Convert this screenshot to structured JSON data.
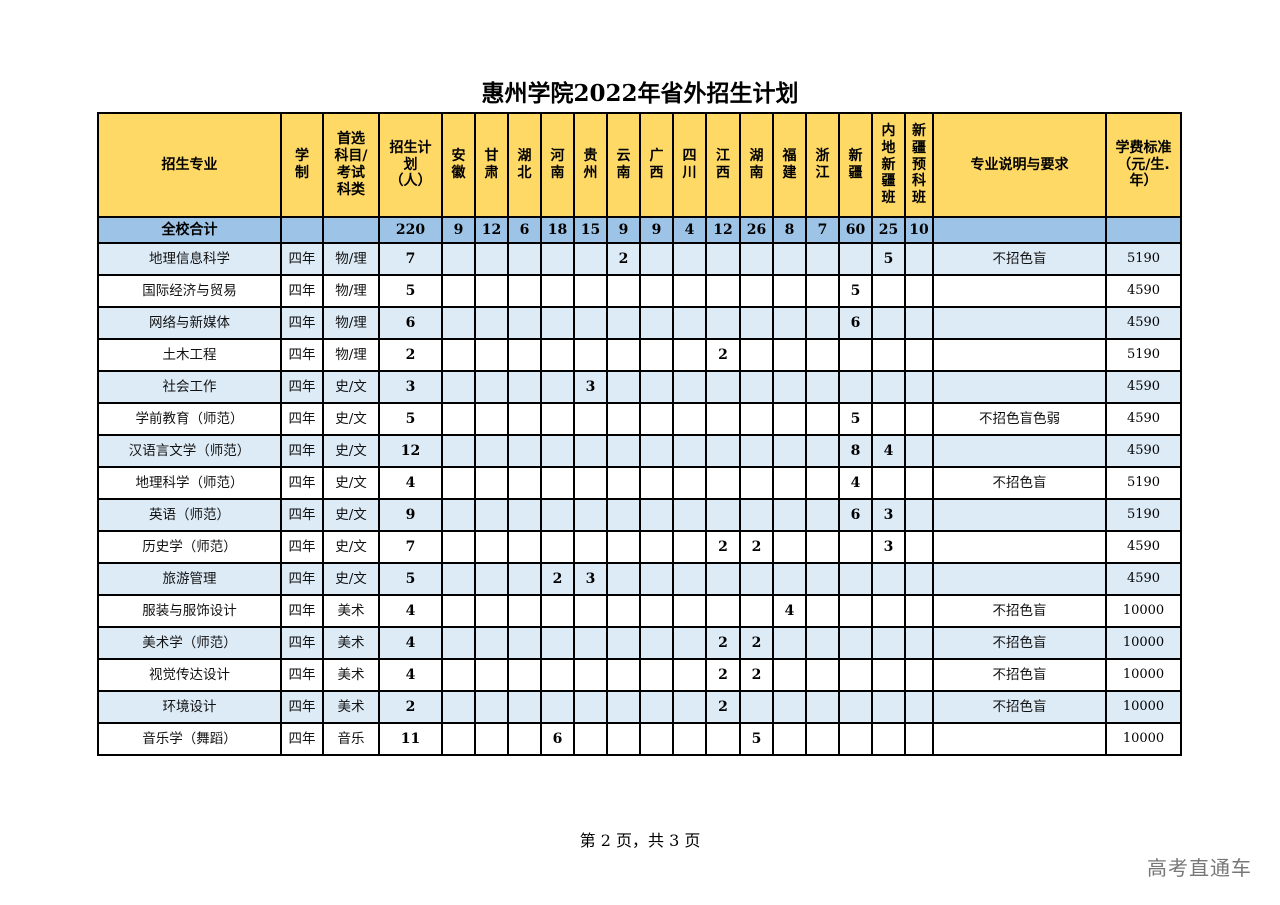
{
  "title": "惠州学院2022年省外招生计划",
  "headers": [
    "招生专业",
    "学\n制",
    "首选\n科目/\n考试\n科类",
    "招生计\n划\n（人）",
    "安\n徽",
    "甘\n肃",
    "湖\n北",
    "河\n南",
    "贵\n州",
    "云\n南",
    "广\n西",
    "四\n川",
    "江\n西",
    "湖\n南",
    "福\n建",
    "浙\n江",
    "新\n疆",
    "内\n地\n新\n疆\n班",
    "新\n疆\n预\n科\n班",
    "专业说明与要求",
    "学费标准\n（元/生.\n年）"
  ],
  "total": {
    "name": "全校合计",
    "plan": "220",
    "provinces": [
      "9",
      "12",
      "6",
      "18",
      "15",
      "9",
      "9",
      "4",
      "12",
      "26",
      "8",
      "7",
      "60",
      "25",
      "10"
    ]
  },
  "rows": [
    {
      "name": "地理信息科学",
      "years": "四年",
      "subject": "物/理",
      "plan": "7",
      "provinces": [
        "",
        "",
        "",
        "",
        "",
        "2",
        "",
        "",
        "",
        "",
        "",
        "",
        "",
        "5",
        ""
      ],
      "note": "不招色盲",
      "fee": "5190"
    },
    {
      "name": "国际经济与贸易",
      "years": "四年",
      "subject": "物/理",
      "plan": "5",
      "provinces": [
        "",
        "",
        "",
        "",
        "",
        "",
        "",
        "",
        "",
        "",
        "",
        "",
        "5",
        "",
        ""
      ],
      "note": "",
      "fee": "4590"
    },
    {
      "name": "网络与新媒体",
      "years": "四年",
      "subject": "物/理",
      "plan": "6",
      "provinces": [
        "",
        "",
        "",
        "",
        "",
        "",
        "",
        "",
        "",
        "",
        "",
        "",
        "6",
        "",
        ""
      ],
      "note": "",
      "fee": "4590"
    },
    {
      "name": "土木工程",
      "years": "四年",
      "subject": "物/理",
      "plan": "2",
      "provinces": [
        "",
        "",
        "",
        "",
        "",
        "",
        "",
        "",
        "2",
        "",
        "",
        "",
        "",
        "",
        ""
      ],
      "note": "",
      "fee": "5190"
    },
    {
      "name": "社会工作",
      "years": "四年",
      "subject": "史/文",
      "plan": "3",
      "provinces": [
        "",
        "",
        "",
        "",
        "3",
        "",
        "",
        "",
        "",
        "",
        "",
        "",
        "",
        "",
        ""
      ],
      "note": "",
      "fee": "4590"
    },
    {
      "name": "学前教育（师范）",
      "years": "四年",
      "subject": "史/文",
      "plan": "5",
      "provinces": [
        "",
        "",
        "",
        "",
        "",
        "",
        "",
        "",
        "",
        "",
        "",
        "",
        "5",
        "",
        ""
      ],
      "note": "不招色盲色弱",
      "fee": "4590"
    },
    {
      "name": "汉语言文学（师范）",
      "years": "四年",
      "subject": "史/文",
      "plan": "12",
      "provinces": [
        "",
        "",
        "",
        "",
        "",
        "",
        "",
        "",
        "",
        "",
        "",
        "",
        "8",
        "4",
        ""
      ],
      "note": "",
      "fee": "4590"
    },
    {
      "name": "地理科学（师范）",
      "years": "四年",
      "subject": "史/文",
      "plan": "4",
      "provinces": [
        "",
        "",
        "",
        "",
        "",
        "",
        "",
        "",
        "",
        "",
        "",
        "",
        "4",
        "",
        ""
      ],
      "note": "不招色盲",
      "fee": "5190"
    },
    {
      "name": "英语（师范）",
      "years": "四年",
      "subject": "史/文",
      "plan": "9",
      "provinces": [
        "",
        "",
        "",
        "",
        "",
        "",
        "",
        "",
        "",
        "",
        "",
        "",
        "6",
        "3",
        ""
      ],
      "note": "",
      "fee": "5190"
    },
    {
      "name": "历史学（师范）",
      "years": "四年",
      "subject": "史/文",
      "plan": "7",
      "provinces": [
        "",
        "",
        "",
        "",
        "",
        "",
        "",
        "",
        "2",
        "2",
        "",
        "",
        "",
        "3",
        ""
      ],
      "note": "",
      "fee": "4590"
    },
    {
      "name": "旅游管理",
      "years": "四年",
      "subject": "史/文",
      "plan": "5",
      "provinces": [
        "",
        "",
        "",
        "2",
        "3",
        "",
        "",
        "",
        "",
        "",
        "",
        "",
        "",
        "",
        ""
      ],
      "note": "",
      "fee": "4590"
    },
    {
      "name": "服装与服饰设计",
      "years": "四年",
      "subject": "美术",
      "plan": "4",
      "provinces": [
        "",
        "",
        "",
        "",
        "",
        "",
        "",
        "",
        "",
        "",
        "4",
        "",
        "",
        "",
        ""
      ],
      "note": "不招色盲",
      "fee": "10000"
    },
    {
      "name": "美术学（师范）",
      "years": "四年",
      "subject": "美术",
      "plan": "4",
      "provinces": [
        "",
        "",
        "",
        "",
        "",
        "",
        "",
        "",
        "2",
        "2",
        "",
        "",
        "",
        "",
        ""
      ],
      "note": "不招色盲",
      "fee": "10000"
    },
    {
      "name": "视觉传达设计",
      "years": "四年",
      "subject": "美术",
      "plan": "4",
      "provinces": [
        "",
        "",
        "",
        "",
        "",
        "",
        "",
        "",
        "2",
        "2",
        "",
        "",
        "",
        "",
        ""
      ],
      "note": "不招色盲",
      "fee": "10000"
    },
    {
      "name": "环境设计",
      "years": "四年",
      "subject": "美术",
      "plan": "2",
      "provinces": [
        "",
        "",
        "",
        "",
        "",
        "",
        "",
        "",
        "2",
        "",
        "",
        "",
        "",
        "",
        ""
      ],
      "note": "不招色盲",
      "fee": "10000"
    },
    {
      "name": "音乐学（舞蹈）",
      "years": "四年",
      "subject": "音乐",
      "plan": "11",
      "provinces": [
        "",
        "",
        "",
        "6",
        "",
        "",
        "",
        "",
        "",
        "5",
        "",
        "",
        "",
        "",
        ""
      ],
      "note": "",
      "fee": "10000"
    }
  ],
  "footer": "第 2 页，共 3 页",
  "watermark": "高考直通车"
}
